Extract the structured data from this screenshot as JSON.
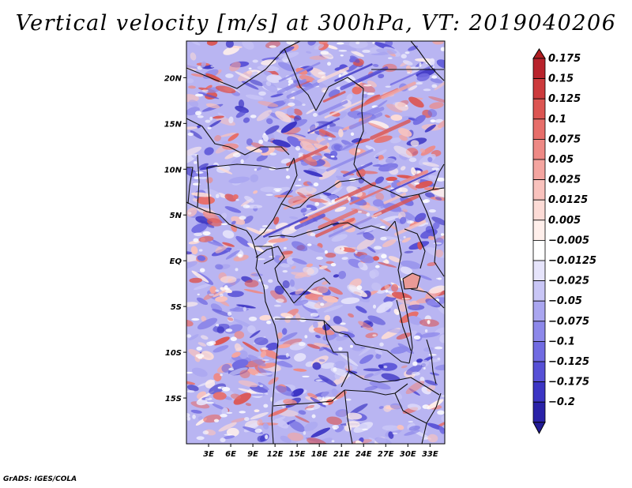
{
  "title": "Vertical velocity [m/s] at 300hPa, VT: 2019040206",
  "footer": "GrADS: IGES/COLA",
  "map": {
    "lon_range": [
      0,
      35
    ],
    "lat_range": [
      -20,
      24
    ],
    "lon_ticks": [
      {
        "value": 3,
        "label": "3E"
      },
      {
        "value": 6,
        "label": "6E"
      },
      {
        "value": 9,
        "label": "9E"
      },
      {
        "value": 12,
        "label": "12E"
      },
      {
        "value": 15,
        "label": "15E"
      },
      {
        "value": 18,
        "label": "18E"
      },
      {
        "value": 21,
        "label": "21E"
      },
      {
        "value": 24,
        "label": "24E"
      },
      {
        "value": 27,
        "label": "27E"
      },
      {
        "value": 30,
        "label": "30E"
      },
      {
        "value": 33,
        "label": "33E"
      }
    ],
    "lat_ticks": [
      {
        "value": 20,
        "label": "20N"
      },
      {
        "value": 15,
        "label": "15N"
      },
      {
        "value": 10,
        "label": "10N"
      },
      {
        "value": 5,
        "label": "5N"
      },
      {
        "value": 0,
        "label": "EQ"
      },
      {
        "value": -5,
        "label": "5S"
      },
      {
        "value": -10,
        "label": "10S"
      },
      {
        "value": -15,
        "label": "15S"
      }
    ]
  },
  "colorbar": {
    "levels": [
      {
        "label": "0.175",
        "color": "#b8232c"
      },
      {
        "label": "0.15",
        "color": "#cc3a3c"
      },
      {
        "label": "0.125",
        "color": "#dc5552"
      },
      {
        "label": "0.1",
        "color": "#e76e6a"
      },
      {
        "label": "0.075",
        "color": "#ee8985"
      },
      {
        "label": "0.05",
        "color": "#f4a5a0"
      },
      {
        "label": "0.025",
        "color": "#f9c2bd"
      },
      {
        "label": "0.0125",
        "color": "#fcdbd6"
      },
      {
        "label": "0.005",
        "color": "#ffefeb"
      },
      {
        "label": "−0.005",
        "color": "#ffffff"
      },
      {
        "label": "−0.0125",
        "color": "#e6e4fb"
      },
      {
        "label": "−0.025",
        "color": "#c9c6f6"
      },
      {
        "label": "−0.05",
        "color": "#aaa6f0"
      },
      {
        "label": "−0.075",
        "color": "#8d88ea"
      },
      {
        "label": "−0.1",
        "color": "#716be2"
      },
      {
        "label": "−0.125",
        "color": "#5750d6"
      },
      {
        "label": "−0.175",
        "color": "#3c35c4"
      },
      {
        "label": "−0.2",
        "color": "#2a22a8"
      }
    ],
    "top_color": "#b01e22",
    "bottom_color": "#221b95"
  }
}
